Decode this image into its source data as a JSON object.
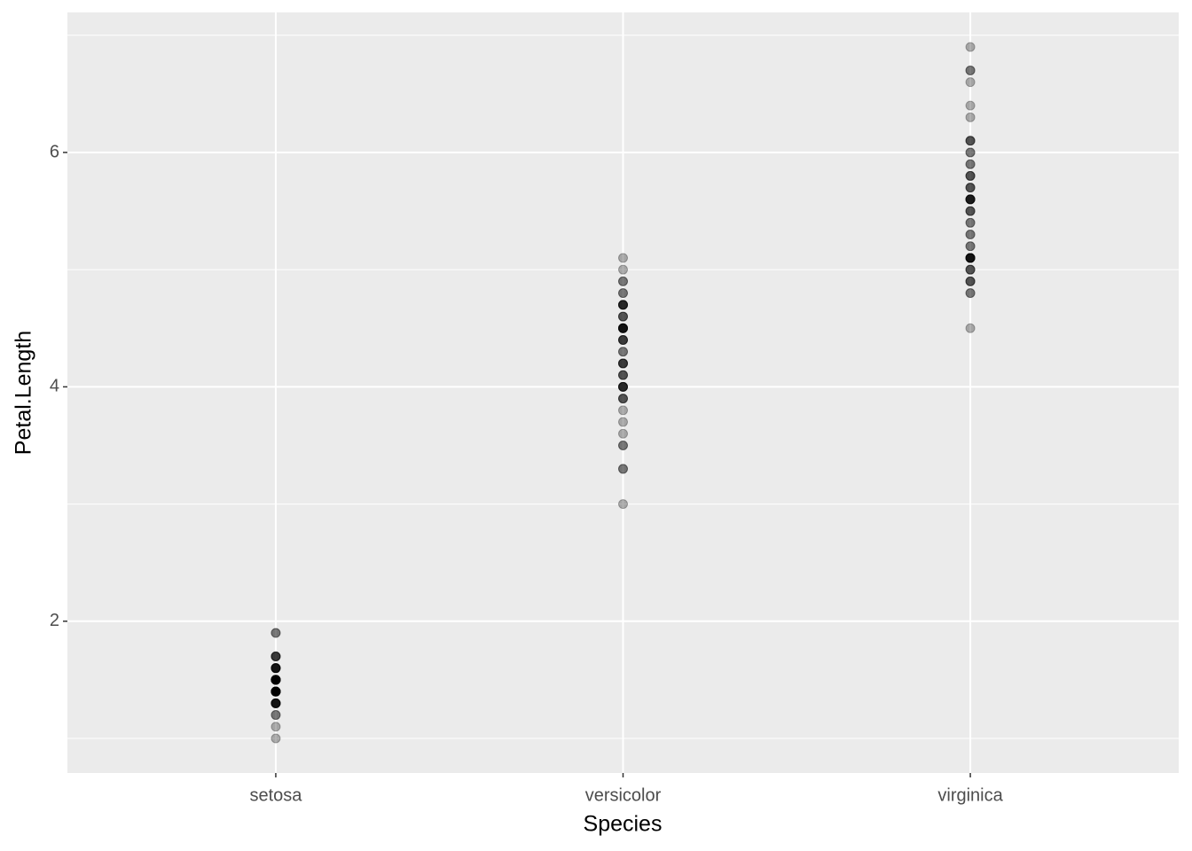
{
  "chart_data": {
    "type": "strip",
    "x_label": "Species",
    "y_label": "Petal.Length",
    "categories": [
      "setosa",
      "versicolor",
      "virginica"
    ],
    "values": [
      [
        1.4,
        1.4,
        1.3,
        1.5,
        1.4,
        1.7,
        1.4,
        1.5,
        1.4,
        1.5,
        1.5,
        1.6,
        1.4,
        1.1,
        1.2,
        1.5,
        1.3,
        1.4,
        1.7,
        1.5,
        1.7,
        1.5,
        1.0,
        1.7,
        1.9,
        1.6,
        1.6,
        1.5,
        1.4,
        1.6,
        1.6,
        1.5,
        1.5,
        1.4,
        1.5,
        1.2,
        1.3,
        1.4,
        1.3,
        1.5,
        1.3,
        1.3,
        1.3,
        1.6,
        1.9,
        1.4,
        1.6,
        1.4,
        1.5,
        1.4
      ],
      [
        4.7,
        4.5,
        4.9,
        4.0,
        4.6,
        4.5,
        4.7,
        3.3,
        4.6,
        3.9,
        3.5,
        4.2,
        4.0,
        4.7,
        3.6,
        4.4,
        4.5,
        4.1,
        4.5,
        3.9,
        4.8,
        4.0,
        4.9,
        4.7,
        4.3,
        4.4,
        4.8,
        5.0,
        4.5,
        3.5,
        3.8,
        3.7,
        3.9,
        5.1,
        4.5,
        4.5,
        4.7,
        4.4,
        4.1,
        4.0,
        4.4,
        4.6,
        4.0,
        3.3,
        4.2,
        4.2,
        4.2,
        4.3,
        3.0,
        4.1
      ],
      [
        6.0,
        5.1,
        5.9,
        5.6,
        5.8,
        6.6,
        4.5,
        6.3,
        5.8,
        6.1,
        5.1,
        5.3,
        5.5,
        5.0,
        5.1,
        5.3,
        5.5,
        6.7,
        6.9,
        5.0,
        5.7,
        4.9,
        6.7,
        4.9,
        5.7,
        6.0,
        4.8,
        4.9,
        5.6,
        5.8,
        6.1,
        6.4,
        5.6,
        5.1,
        5.6,
        6.1,
        5.6,
        5.5,
        4.8,
        5.4,
        5.6,
        5.1,
        5.1,
        5.9,
        5.7,
        5.2,
        5.0,
        5.2,
        5.4,
        5.1
      ]
    ],
    "color": "#000000",
    "opacity": 0.3,
    "ylim": [
      0.705,
      7.195
    ],
    "yticks": [
      2,
      4,
      6
    ],
    "minor_yticks": [
      1,
      3,
      5,
      7
    ],
    "grid": true,
    "panel_color": "#ebebeb"
  }
}
